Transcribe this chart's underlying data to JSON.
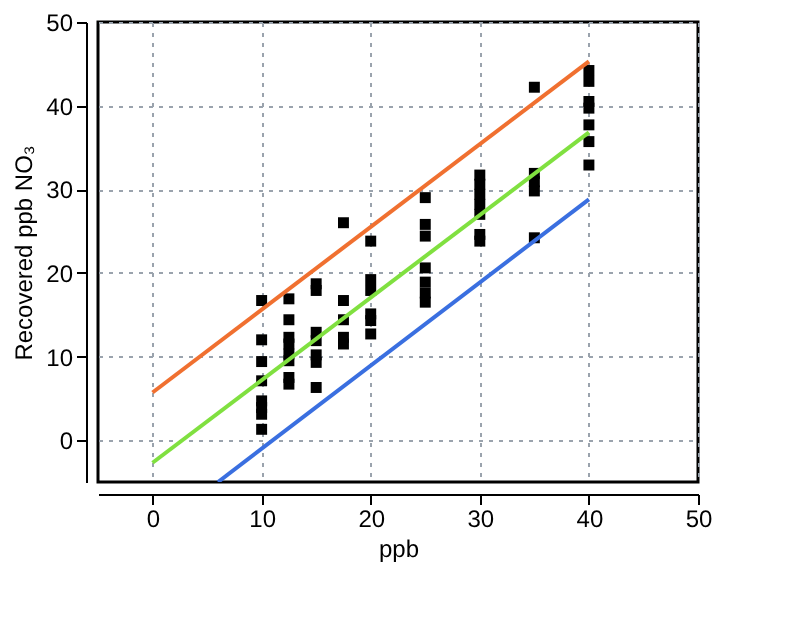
{
  "chart_data": {
    "type": "scatter",
    "xlabel": "ppb",
    "ylabel": "Recovered ppb NO₃",
    "xlim": [
      -5,
      50
    ],
    "ylim": [
      -5,
      50
    ],
    "xticks": [
      0,
      10,
      20,
      30,
      40,
      50
    ],
    "yticks": [
      0,
      10,
      20,
      30,
      40,
      50
    ],
    "grid": true,
    "series": [
      {
        "color": "#000000",
        "marker": "square",
        "x": [
          10,
          10,
          10,
          10,
          10,
          10,
          10,
          10,
          12.5,
          12.5,
          12.5,
          12.5,
          12.5,
          12.5,
          12.5,
          12.5,
          15,
          15,
          15,
          15,
          15,
          15,
          15,
          17.5,
          17.5,
          17.5,
          17.5,
          17.5,
          20,
          20,
          20,
          20,
          20,
          20,
          25,
          25,
          25,
          25,
          25,
          25,
          25,
          30,
          30,
          30,
          30,
          30,
          30,
          30,
          35,
          35,
          35,
          35,
          35,
          40,
          40,
          40,
          40,
          40,
          40,
          40
        ],
        "values": [
          16.7,
          12.0,
          9.4,
          7.1,
          4.7,
          3.9,
          3.1,
          1.3,
          16.9,
          14.4,
          12.3,
          11.5,
          10.3,
          9.5,
          7.5,
          6.7,
          18.7,
          17.9,
          12.9,
          11.9,
          10.2,
          9.3,
          6.3,
          26.0,
          16.7,
          14.4,
          12.3,
          11.5,
          23.8,
          19.2,
          17.9,
          15.1,
          14.3,
          12.7,
          29.0,
          25.8,
          24.4,
          20.6,
          18.9,
          17.6,
          16.5,
          31.7,
          30.6,
          29.4,
          28.2,
          27.0,
          24.6,
          23.8,
          42.2,
          31.9,
          30.9,
          29.8,
          24.2,
          44.2,
          42.9,
          40.5,
          39.7,
          37.7,
          35.7,
          32.9
        ]
      },
      {
        "type": "line",
        "color": "#f07030",
        "x": [
          0,
          40
        ],
        "values": [
          5.7,
          45.3
        ]
      },
      {
        "type": "line",
        "color": "#80e040",
        "x": [
          0,
          40
        ],
        "values": [
          -2.7,
          36.8
        ]
      },
      {
        "type": "line",
        "color": "#3a6fe0",
        "x": [
          6,
          40
        ],
        "values": [
          -5,
          28.8
        ]
      }
    ]
  }
}
